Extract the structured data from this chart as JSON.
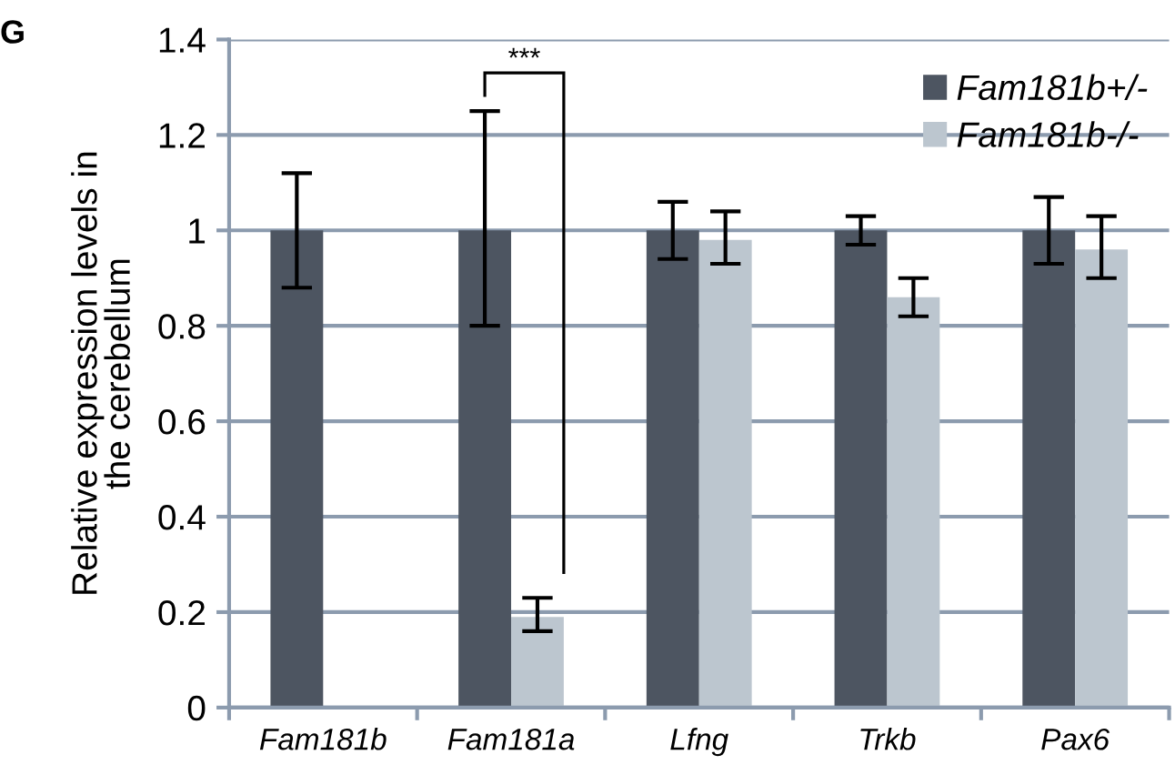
{
  "chart_data": {
    "type": "bar",
    "ylabel": "Relative expression levels in\nthe cerebellum",
    "categories": [
      "Fam181b",
      "Fam181a",
      "Lfng",
      "Trkb",
      "Pax6"
    ],
    "series": [
      {
        "name": "Fam181b+/-",
        "color": "#4d5561",
        "values": [
          1,
          1,
          1,
          1,
          1
        ],
        "errors": [
          [
            0.88,
            1.12
          ],
          [
            0.8,
            1.25
          ],
          [
            0.94,
            1.06
          ],
          [
            0.97,
            1.03
          ],
          [
            0.93,
            1.07
          ]
        ]
      },
      {
        "name": "Fam181b-/-",
        "color": "#bcc6cf",
        "values": [
          null,
          0.19,
          0.98,
          0.86,
          0.96
        ],
        "errors": [
          null,
          [
            0.16,
            0.23
          ],
          [
            0.93,
            1.04
          ],
          [
            0.82,
            0.9
          ],
          [
            0.9,
            1.03
          ]
        ]
      }
    ],
    "ylim": [
      0,
      1.4
    ],
    "yticks": [
      0,
      0.2,
      0.4,
      0.6,
      0.8,
      1,
      1.2,
      1.4
    ],
    "grid": "y",
    "legend": "top right",
    "annotations": [
      "G",
      "***"
    ]
  }
}
